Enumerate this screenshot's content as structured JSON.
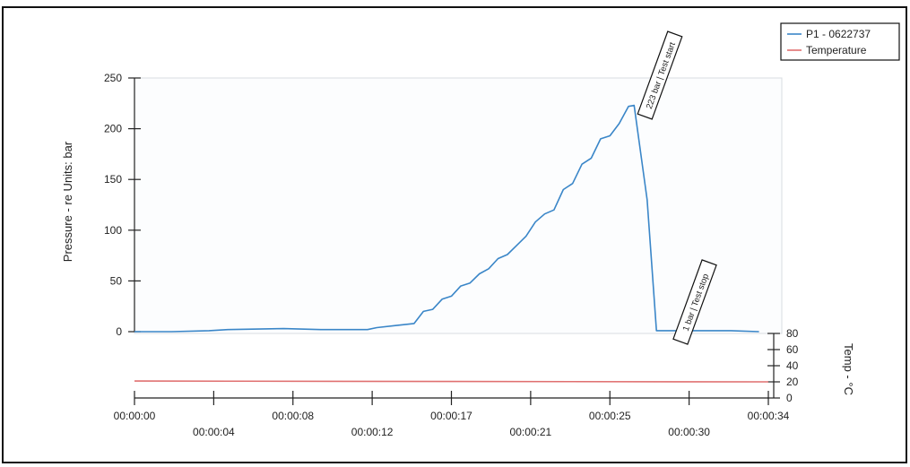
{
  "chart_data": {
    "type": "line",
    "xlabel": "",
    "ylabel": "Pressure - re Units: bar",
    "y2label": "Temp - °C",
    "ylim": [
      0,
      250
    ],
    "y2lim": [
      0,
      80
    ],
    "xlim_seconds": [
      0,
      34
    ],
    "grid": false,
    "legend_placement": "top-right",
    "y_ticks": [
      "0",
      "50",
      "100",
      "150",
      "200",
      "250"
    ],
    "y2_ticks": [
      "0",
      "20",
      "40",
      "60",
      "80"
    ],
    "x_ticks_upper": [
      "00:00:00",
      "00:00:08",
      "00:00:17",
      "00:00:25",
      "00:00:34"
    ],
    "x_ticks_lower": [
      "00:00:04",
      "00:00:12",
      "00:00:21",
      "00:00:30"
    ],
    "x_tick_values_upper": [
      0,
      8.5,
      17,
      25.5,
      34
    ],
    "x_tick_values_lower": [
      4.25,
      12.75,
      21.25,
      29.75
    ],
    "series": [
      {
        "name": "P1 - 0622737",
        "color": "#3a86c8",
        "axis": "left",
        "x": [
          0,
          2,
          4,
          5,
          8,
          10,
          12.5,
          13,
          14,
          15,
          15.5,
          16,
          16.5,
          17,
          17.5,
          18,
          18.5,
          19,
          19.5,
          20,
          20.5,
          21,
          21.5,
          22,
          22.5,
          23,
          23.5,
          24,
          24.5,
          25,
          25.5,
          26,
          26.5,
          26.8,
          27.5,
          28,
          29,
          30,
          32,
          33.5
        ],
        "y": [
          0,
          0,
          1,
          2,
          3,
          2,
          2,
          4,
          6,
          8,
          20,
          22,
          32,
          35,
          45,
          48,
          57,
          62,
          72,
          76,
          85,
          94,
          108,
          116,
          120,
          140,
          146,
          165,
          171,
          190,
          193,
          205,
          222,
          223,
          130,
          1,
          1,
          1,
          1,
          0
        ]
      },
      {
        "name": "Temperature",
        "color": "#e07070",
        "axis": "right",
        "x": [
          0,
          17,
          34
        ],
        "y": [
          21,
          20.5,
          20
        ]
      }
    ],
    "annotations": [
      {
        "text": "223  bar |  Test start",
        "x": 27,
        "y": 223,
        "axis": "left"
      },
      {
        "text": "1  bar |  Test stop",
        "x": 28.5,
        "y": 1,
        "axis": "left"
      }
    ]
  }
}
